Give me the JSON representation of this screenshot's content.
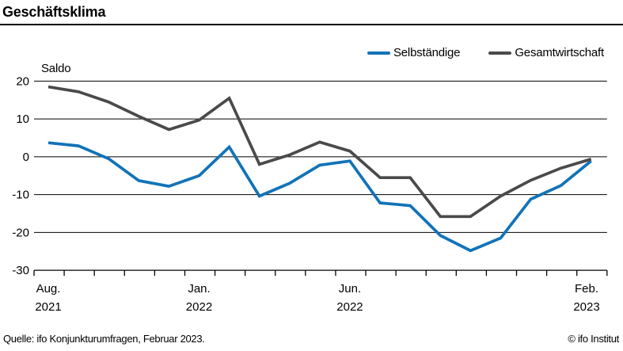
{
  "header": {
    "title": "Geschäftsklima"
  },
  "chart_data": {
    "type": "line",
    "title": "Geschäftsklima",
    "unit_label": "Saldo",
    "grid": true,
    "legend_position": "top-right",
    "ylim": [
      -30,
      20
    ],
    "yticks": [
      20,
      10,
      0,
      -10,
      -20,
      -30
    ],
    "x": [
      "Aug. 2021",
      "Sep. 2021",
      "Okt. 2021",
      "Nov. 2021",
      "Dez. 2021",
      "Jan. 2022",
      "Feb. 2022",
      "Mär. 2022",
      "Apr. 2022",
      "Mai 2022",
      "Jun. 2022",
      "Jul. 2022",
      "Aug. 2022",
      "Sep. 2022",
      "Okt. 2022",
      "Nov. 2022",
      "Dez. 2022",
      "Jan. 2023",
      "Feb. 2023"
    ],
    "xticks": [
      {
        "index": 0,
        "month": "Aug.",
        "year": "2021"
      },
      {
        "index": 5,
        "month": "Jan.",
        "year": "2022"
      },
      {
        "index": 10,
        "month": "Jun.",
        "year": "2022"
      },
      {
        "index": 18,
        "month": "Feb.",
        "year": "2023"
      }
    ],
    "series": [
      {
        "name": "Selbständige",
        "color": "#1173b8",
        "values": [
          3.7,
          2.9,
          -0.5,
          -6.3,
          -7.8,
          -5.0,
          2.6,
          -10.4,
          -7.0,
          -2.2,
          -1.1,
          -12.2,
          -12.9,
          -20.8,
          -24.8,
          -21.5,
          -11.2,
          -7.6,
          -1.1
        ]
      },
      {
        "name": "Gesamtwirtschaft",
        "color": "#4a4a4a",
        "values": [
          18.5,
          17.2,
          14.5,
          10.7,
          7.2,
          9.7,
          15.5,
          -2.0,
          0.5,
          3.9,
          1.5,
          -5.5,
          -5.5,
          -15.8,
          -15.8,
          -10.4,
          -6.2,
          -3.0,
          -0.6
        ]
      }
    ]
  },
  "footer": {
    "source": "Quelle: ifo Konjunkturumfragen, Februar 2023.",
    "copyright": "© ifo Institut"
  }
}
